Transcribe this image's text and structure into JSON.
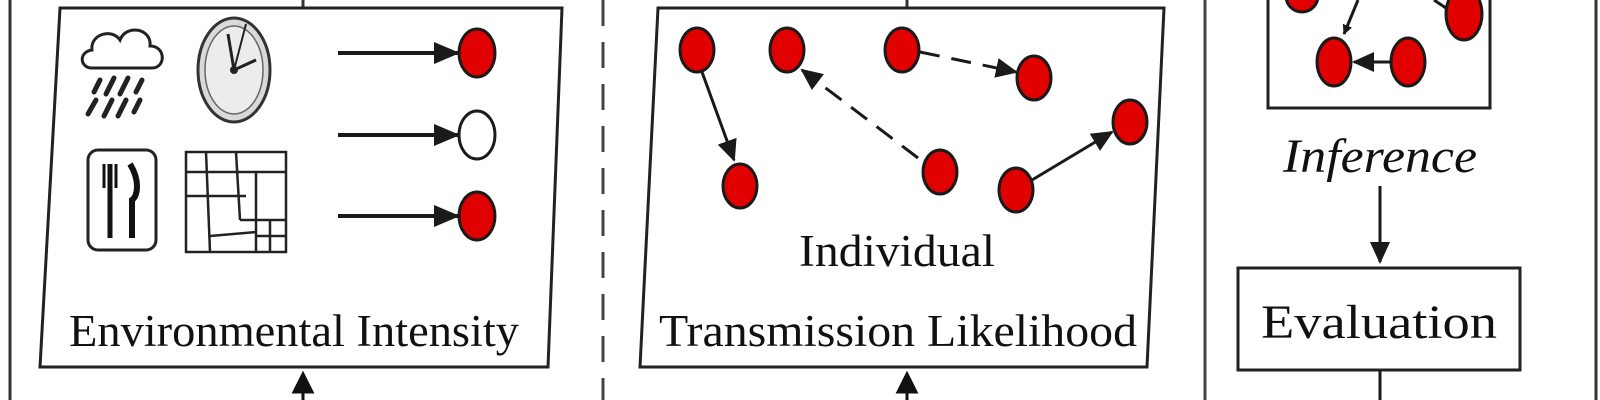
{
  "panels": {
    "environmental": {
      "label": "Environmental Intensity"
    },
    "individual": {
      "label_line1": "Individual",
      "label_line2": "Transmission Likelihood"
    },
    "inference": {
      "label": "Inference"
    },
    "evaluation": {
      "label": "Evaluation"
    }
  },
  "icons": [
    "rain-cloud-icon",
    "clock-icon",
    "fork-knife-icon",
    "floor-plan-icon"
  ],
  "colors": {
    "node_fill": "#e00000",
    "node_stroke": "#1a1a1a",
    "line": "#1a1a1a",
    "background": "#ffffff"
  }
}
